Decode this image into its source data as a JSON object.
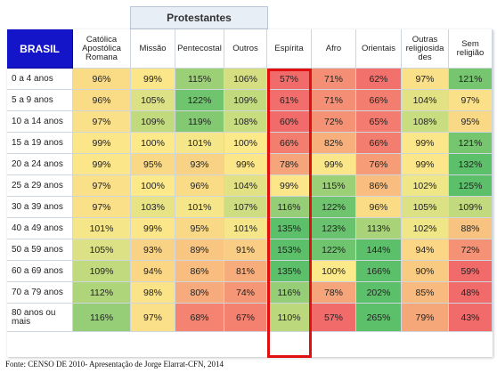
{
  "group_header": "Protestantes",
  "corner_label": "BRASIL",
  "columns": [
    "Católica Apostólica Romana",
    "Missão",
    "Pentecostal",
    "Outros",
    "Espírita",
    "Afro",
    "Orientais",
    "Outras religiosida des",
    "Sem religião"
  ],
  "rows": [
    {
      "label": "0 a 4 anos",
      "values": [
        "96%",
        "99%",
        "115%",
        "106%",
        "57%",
        "71%",
        "62%",
        "97%",
        "121%"
      ]
    },
    {
      "label": "5 a 9 anos",
      "values": [
        "96%",
        "105%",
        "122%",
        "109%",
        "61%",
        "71%",
        "66%",
        "104%",
        "97%"
      ]
    },
    {
      "label": "10 a 14 anos",
      "values": [
        "97%",
        "109%",
        "119%",
        "108%",
        "60%",
        "72%",
        "65%",
        "108%",
        "95%"
      ]
    },
    {
      "label": "15 a 19 anos",
      "values": [
        "99%",
        "100%",
        "101%",
        "100%",
        "66%",
        "82%",
        "66%",
        "99%",
        "121%"
      ]
    },
    {
      "label": "20 a 24 anos",
      "values": [
        "99%",
        "95%",
        "93%",
        "99%",
        "78%",
        "99%",
        "76%",
        "99%",
        "132%"
      ]
    },
    {
      "label": "25 a 29 anos",
      "values": [
        "97%",
        "100%",
        "96%",
        "104%",
        "99%",
        "115%",
        "86%",
        "102%",
        "125%"
      ]
    },
    {
      "label": "30 a 39 anos",
      "values": [
        "97%",
        "103%",
        "101%",
        "107%",
        "116%",
        "122%",
        "96%",
        "105%",
        "109%"
      ]
    },
    {
      "label": "40 a 49 anos",
      "values": [
        "101%",
        "99%",
        "95%",
        "101%",
        "135%",
        "123%",
        "113%",
        "102%",
        "88%"
      ]
    },
    {
      "label": "50 a 59 anos",
      "values": [
        "105%",
        "93%",
        "89%",
        "91%",
        "153%",
        "122%",
        "144%",
        "94%",
        "72%"
      ]
    },
    {
      "label": "60 a 69 anos",
      "values": [
        "109%",
        "94%",
        "86%",
        "81%",
        "135%",
        "100%",
        "166%",
        "90%",
        "59%"
      ]
    },
    {
      "label": "70 a 79 anos",
      "values": [
        "112%",
        "98%",
        "80%",
        "74%",
        "116%",
        "78%",
        "202%",
        "85%",
        "48%"
      ]
    },
    {
      "label": "80 anos ou mais",
      "values": [
        "116%",
        "97%",
        "68%",
        "67%",
        "110%",
        "57%",
        "265%",
        "79%",
        "43%"
      ]
    }
  ],
  "highlighted_column": "Espírita",
  "footer": "Fonte: CENSO DE 2010- Apresentação de Jorge Elarrat-CFN, 2014",
  "colors": {
    "brasil_header": "#1414c8",
    "scale_low": "#f26b6b",
    "scale_mid": "#fbe98a",
    "scale_high": "#5cbf6a",
    "highlight_border": "#e01010"
  }
}
